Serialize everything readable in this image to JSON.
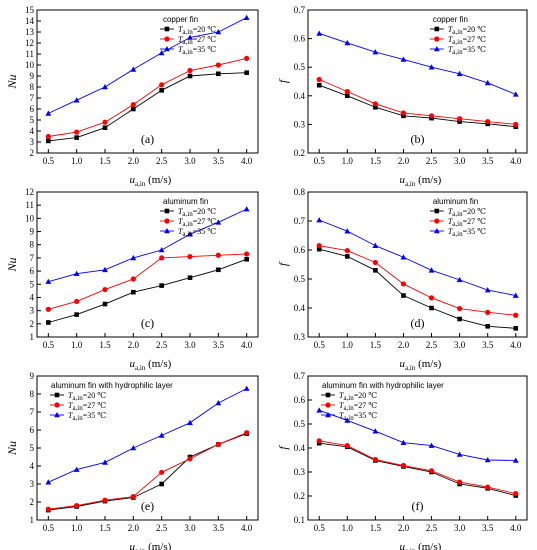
{
  "chart_data": [
    {
      "type": "line",
      "panel_label": "(a)",
      "legend_title": "copper fin",
      "ylabel": "Nu",
      "xlabel": "u",
      "xlabel_sub": "a,in",
      "xlabel_unit": "(m/s)",
      "x": [
        0.5,
        1.0,
        1.5,
        2.0,
        2.5,
        3.0,
        3.5,
        4.0
      ],
      "xlim": [
        0.3,
        4.2
      ],
      "ylim": [
        2,
        15
      ],
      "yticks": [
        "2",
        "3",
        "4",
        "5",
        "6",
        "7",
        "8",
        "9",
        "10",
        "11",
        "12",
        "13",
        "14",
        "15"
      ],
      "series": [
        {
          "name_prefix": "T",
          "name_sub": "a,in",
          "name_suffix": "=20 ℃",
          "color": "#000000",
          "marker": "square",
          "values": [
            3.1,
            3.4,
            4.3,
            6.0,
            7.7,
            9.0,
            9.2,
            9.3
          ]
        },
        {
          "name_prefix": "T",
          "name_sub": "a,in",
          "name_suffix": "=27 ℃",
          "color": "#ff0000",
          "marker": "circle",
          "values": [
            3.5,
            3.9,
            4.8,
            6.4,
            8.2,
            9.5,
            10.0,
            10.6
          ]
        },
        {
          "name_prefix": "T",
          "name_sub": "a,in",
          "name_suffix": "=35 ℃",
          "color": "#0000ff",
          "marker": "triangle",
          "values": [
            5.6,
            6.8,
            8.0,
            9.6,
            11.1,
            12.5,
            13.0,
            14.3
          ]
        }
      ]
    },
    {
      "type": "line",
      "panel_label": "(b)",
      "legend_title": "copper fin",
      "ylabel": "f",
      "xlabel": "u",
      "xlabel_sub": "a,in",
      "xlabel_unit": "(m/s)",
      "x": [
        0.5,
        1.0,
        1.5,
        2.0,
        2.5,
        3.0,
        3.5,
        4.0
      ],
      "xlim": [
        0.3,
        4.2
      ],
      "ylim": [
        0.2,
        0.7
      ],
      "yticks": [
        "0.2",
        "0.3",
        "0.4",
        "0.5",
        "0.6",
        "0.7"
      ],
      "series": [
        {
          "name_prefix": "T",
          "name_sub": "a,in",
          "name_suffix": "=20 ℃",
          "color": "#000000",
          "marker": "square",
          "values": [
            0.437,
            0.4,
            0.36,
            0.33,
            0.322,
            0.31,
            0.302,
            0.292
          ]
        },
        {
          "name_prefix": "T",
          "name_sub": "a,in",
          "name_suffix": "=27 ℃",
          "color": "#ff0000",
          "marker": "circle",
          "values": [
            0.457,
            0.415,
            0.372,
            0.34,
            0.33,
            0.32,
            0.31,
            0.3
          ]
        },
        {
          "name_prefix": "T",
          "name_sub": "a,in",
          "name_suffix": "=35 ℃",
          "color": "#0000ff",
          "marker": "triangle",
          "values": [
            0.618,
            0.585,
            0.553,
            0.527,
            0.5,
            0.477,
            0.445,
            0.405
          ]
        }
      ]
    },
    {
      "type": "line",
      "panel_label": "(c)",
      "legend_title": "aluminum fin",
      "ylabel": "Nu",
      "xlabel": "u",
      "xlabel_sub": "a,in",
      "xlabel_unit": "(m/s)",
      "x": [
        0.5,
        1.0,
        1.5,
        2.0,
        2.5,
        3.0,
        3.5,
        4.0
      ],
      "xlim": [
        0.3,
        4.2
      ],
      "ylim": [
        1,
        12
      ],
      "yticks": [
        "1",
        "2",
        "3",
        "4",
        "5",
        "6",
        "7",
        "8",
        "9",
        "10",
        "11",
        "12"
      ],
      "series": [
        {
          "name_prefix": "T",
          "name_sub": "a,in",
          "name_suffix": "=20 ℃",
          "color": "#000000",
          "marker": "square",
          "values": [
            2.1,
            2.7,
            3.5,
            4.4,
            4.9,
            5.5,
            6.1,
            6.9
          ]
        },
        {
          "name_prefix": "T",
          "name_sub": "a,in",
          "name_suffix": "=27 ℃",
          "color": "#ff0000",
          "marker": "circle",
          "values": [
            3.1,
            3.7,
            4.6,
            5.4,
            7.0,
            7.1,
            7.2,
            7.3
          ]
        },
        {
          "name_prefix": "T",
          "name_sub": "a,in",
          "name_suffix": "=35 ℃",
          "color": "#0000ff",
          "marker": "triangle",
          "values": [
            5.2,
            5.8,
            6.1,
            7.0,
            7.6,
            8.8,
            9.7,
            10.7
          ]
        }
      ]
    },
    {
      "type": "line",
      "panel_label": "(d)",
      "legend_title": "aluminum fin",
      "ylabel": "f",
      "xlabel": "u",
      "xlabel_sub": "a,in",
      "xlabel_unit": "(m/s)",
      "x": [
        0.5,
        1.0,
        1.5,
        2.0,
        2.5,
        3.0,
        3.5,
        4.0
      ],
      "xlim": [
        0.3,
        4.2
      ],
      "ylim": [
        0.3,
        0.8
      ],
      "yticks": [
        "0.3",
        "0.4",
        "0.5",
        "0.6",
        "0.7",
        "0.8"
      ],
      "series": [
        {
          "name_prefix": "T",
          "name_sub": "a,in",
          "name_suffix": "=20 ℃",
          "color": "#000000",
          "marker": "square",
          "values": [
            0.603,
            0.578,
            0.53,
            0.443,
            0.4,
            0.362,
            0.337,
            0.33
          ]
        },
        {
          "name_prefix": "T",
          "name_sub": "a,in",
          "name_suffix": "=27 ℃",
          "color": "#ff0000",
          "marker": "circle",
          "values": [
            0.615,
            0.598,
            0.557,
            0.483,
            0.435,
            0.398,
            0.385,
            0.375
          ]
        },
        {
          "name_prefix": "T",
          "name_sub": "a,in",
          "name_suffix": "=35 ℃",
          "color": "#0000ff",
          "marker": "triangle",
          "values": [
            0.703,
            0.665,
            0.615,
            0.575,
            0.53,
            0.497,
            0.462,
            0.443
          ]
        }
      ]
    },
    {
      "type": "line",
      "panel_label": "(e)",
      "legend_title": "aluminum fin with hydrophilic layer",
      "ylabel": "Nu",
      "xlabel": "u",
      "xlabel_sub": "a,in",
      "xlabel_unit": "(m/s)",
      "x": [
        0.5,
        1.0,
        1.5,
        2.0,
        2.5,
        3.0,
        3.5,
        4.0
      ],
      "xlim": [
        0.3,
        4.2
      ],
      "ylim": [
        1,
        9
      ],
      "yticks": [
        "1",
        "2",
        "3",
        "4",
        "5",
        "6",
        "7",
        "8",
        "9"
      ],
      "series": [
        {
          "name_prefix": "T",
          "name_sub": "a,in",
          "name_suffix": "=20 ℃",
          "color": "#000000",
          "marker": "square",
          "values": [
            1.55,
            1.75,
            2.05,
            2.25,
            3.0,
            4.5,
            5.2,
            5.8
          ]
        },
        {
          "name_prefix": "T",
          "name_sub": "a,in",
          "name_suffix": "=27 ℃",
          "color": "#ff0000",
          "marker": "circle",
          "values": [
            1.6,
            1.8,
            2.1,
            2.3,
            3.65,
            4.4,
            5.2,
            5.85
          ]
        },
        {
          "name_prefix": "T",
          "name_sub": "a,in",
          "name_suffix": "=35 ℃",
          "color": "#0000ff",
          "marker": "triangle",
          "values": [
            3.1,
            3.8,
            4.2,
            5.0,
            5.7,
            6.4,
            7.5,
            8.3
          ]
        }
      ]
    },
    {
      "type": "line",
      "panel_label": "(f)",
      "legend_title": "aluminum fin with hydrophilic layer",
      "ylabel": "f",
      "xlabel": "u",
      "xlabel_sub": "a,in",
      "xlabel_unit": "(m/s)",
      "x": [
        0.5,
        1.0,
        1.5,
        2.0,
        2.5,
        3.0,
        3.5,
        4.0
      ],
      "xlim": [
        0.3,
        4.2
      ],
      "ylim": [
        0.1,
        0.7
      ],
      "yticks": [
        "0.1",
        "0.2",
        "0.3",
        "0.4",
        "0.5",
        "0.6",
        "0.7"
      ],
      "series": [
        {
          "name_prefix": "T",
          "name_sub": "a,in",
          "name_suffix": "=20 ℃",
          "color": "#000000",
          "marker": "square",
          "values": [
            0.42,
            0.405,
            0.348,
            0.323,
            0.3,
            0.25,
            0.232,
            0.202
          ]
        },
        {
          "name_prefix": "T",
          "name_sub": "a,in",
          "name_suffix": "=27 ℃",
          "color": "#ff0000",
          "marker": "circle",
          "values": [
            0.43,
            0.41,
            0.352,
            0.327,
            0.305,
            0.258,
            0.237,
            0.21
          ]
        },
        {
          "name_prefix": "T",
          "name_sub": "a,in",
          "name_suffix": "=35 ℃",
          "color": "#0000ff",
          "marker": "triangle",
          "values": [
            0.557,
            0.515,
            0.47,
            0.422,
            0.41,
            0.373,
            0.35,
            0.348
          ]
        }
      ]
    }
  ]
}
